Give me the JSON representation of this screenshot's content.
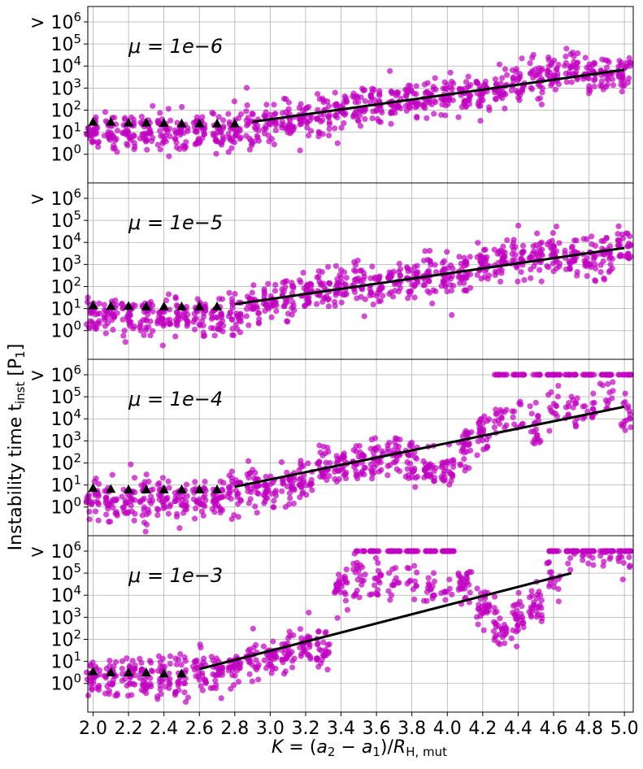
{
  "chart_data": {
    "type": "scatter",
    "xlabel": "K = (a₂ − a₁)/R_H,mut",
    "ylabel": "Instability time t_inst [P₁]",
    "xlim": [
      1.97,
      5.05
    ],
    "x_ticks": [
      2.0,
      2.2,
      2.4,
      2.6,
      2.8,
      3.0,
      3.2,
      3.4,
      3.6,
      3.8,
      4.0,
      4.2,
      4.4,
      4.6,
      4.8,
      5.0
    ],
    "x_tick_labels": [
      "2.0",
      "2.2",
      "2.4",
      "2.6",
      "2.8",
      "3.0",
      "3.2",
      "3.4",
      "3.6",
      "3.8",
      "4.0",
      "4.2",
      "4.4",
      "4.6",
      "4.8",
      "5.0"
    ],
    "y_scale": "log10",
    "ylim_log10": [
      -1.3,
      6.7
    ],
    "y_ticks_log10": [
      0,
      1,
      2,
      3,
      4,
      5,
      6
    ],
    "y_tick_labels": [
      "10^0",
      "10^1",
      "10^2",
      "10^3",
      "10^4",
      "10^5",
      "> 10^6"
    ],
    "grid": true,
    "colors": {
      "points": "#c000c0",
      "markers": "#000000",
      "fit": "#000000"
    },
    "panels": [
      {
        "label": "μ = 1e−6",
        "fit_line": {
          "x": [
            2.9,
            5.0
          ],
          "log10_y": [
            1.47,
            3.83
          ]
        },
        "triangles": {
          "x": [
            2.0,
            2.1,
            2.2,
            2.3,
            2.4,
            2.5,
            2.6,
            2.7,
            2.8
          ],
          "log10_y": [
            1.47,
            1.47,
            1.44,
            1.44,
            1.42,
            1.4,
            1.4,
            1.4,
            1.4
          ]
        },
        "median_log10_y": [
          1.05,
          1.0,
          1.0,
          1.0,
          1.0,
          1.0,
          1.0,
          1.0,
          1.05,
          1.3,
          1.5,
          1.6,
          1.7,
          1.8,
          2.0,
          2.1,
          2.2,
          2.3,
          2.4,
          2.5,
          2.6,
          2.7,
          2.8,
          3.0,
          3.15,
          3.3,
          3.5,
          3.7,
          3.7,
          3.55,
          3.8
        ]
      },
      {
        "label": "μ = 1e−5",
        "fit_line": {
          "x": [
            2.8,
            5.0
          ],
          "log10_y": [
            1.2,
            3.75
          ]
        },
        "triangles": {
          "x": [
            2.0,
            2.1,
            2.2,
            2.3,
            2.4,
            2.5,
            2.6,
            2.7
          ],
          "log10_y": [
            1.15,
            1.12,
            1.12,
            1.1,
            1.1,
            1.1,
            1.1,
            1.1
          ]
        },
        "median_log10_y": [
          0.7,
          0.6,
          0.6,
          0.65,
          0.6,
          0.6,
          0.6,
          0.65,
          0.8,
          1.1,
          1.3,
          1.5,
          1.7,
          1.9,
          2.0,
          2.0,
          2.1,
          2.3,
          2.4,
          2.5,
          2.4,
          2.6,
          2.9,
          3.2,
          3.3,
          3.4,
          3.5,
          3.3,
          3.4,
          3.5,
          4.0
        ]
      },
      {
        "label": "μ = 1e−4",
        "fit_line": {
          "x": [
            2.8,
            5.0
          ],
          "log10_y": [
            0.92,
            4.55
          ]
        },
        "triangles": {
          "x": [
            2.0,
            2.1,
            2.2,
            2.3,
            2.4,
            2.5,
            2.6,
            2.7
          ],
          "log10_y": [
            0.87,
            0.82,
            0.8,
            0.8,
            0.8,
            0.8,
            0.8,
            0.8
          ]
        },
        "median_log10_y": [
          0.4,
          0.3,
          0.4,
          0.3,
          0.4,
          0.4,
          0.3,
          0.4,
          0.6,
          0.8,
          0.8,
          1.0,
          1.2,
          1.8,
          2.0,
          2.1,
          2.2,
          2.3,
          2.1,
          1.5,
          1.7,
          2.8,
          3.3,
          4.0,
          4.0,
          3.5,
          4.5,
          4.3,
          4.2,
          4.8,
          4.2
        ],
        "saturated_x": [
          4.3,
          4.4,
          4.5,
          4.6,
          4.7,
          4.8,
          4.9,
          5.0
        ]
      },
      {
        "label": "μ = 1e−3",
        "fit_line": {
          "x": [
            2.6,
            4.7
          ],
          "log10_y": [
            0.65,
            5.0
          ]
        },
        "triangles": {
          "x": [
            2.0,
            2.1,
            2.2,
            2.3,
            2.4,
            2.5
          ],
          "log10_y": [
            0.55,
            0.5,
            0.5,
            0.5,
            0.45,
            0.45
          ]
        },
        "median_log10_y": [
          0.3,
          0.2,
          0.3,
          0.2,
          0.3,
          0.3,
          0.5,
          0.6,
          0.7,
          1.0,
          1.2,
          1.4,
          1.6,
          1.5,
          4.5,
          4.8,
          4.7,
          4.6,
          4.8,
          4.3,
          4.4,
          4.5,
          3.5,
          2.5,
          3.0,
          3.5,
          4.8,
          6.0,
          6.0,
          6.0,
          6.0
        ],
        "saturated_x": [
          3.5,
          3.6,
          3.7,
          3.8,
          3.9,
          4.0,
          4.6,
          4.7,
          4.8,
          4.9,
          5.0
        ]
      }
    ]
  }
}
